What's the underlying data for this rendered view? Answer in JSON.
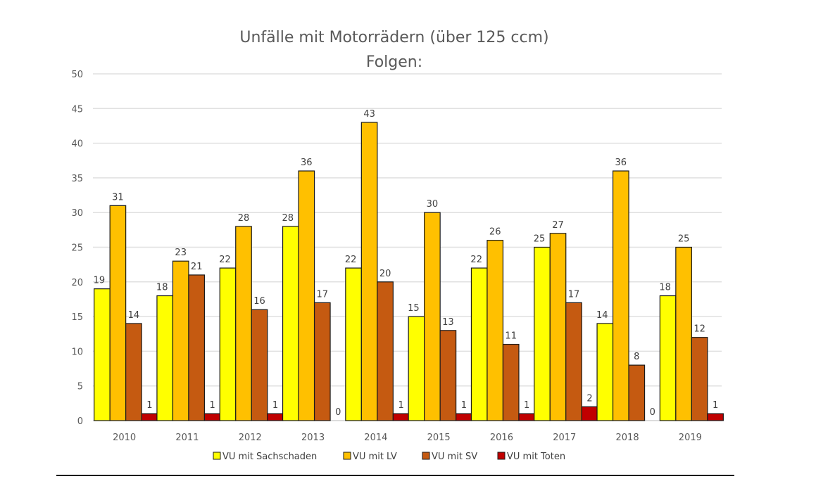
{
  "chart_data": {
    "type": "bar",
    "title": "Unfälle mit Motorrädern (über 125 ccm)",
    "subtitle": "Folgen:",
    "xlabel": "",
    "ylabel": "",
    "ylim": [
      0,
      50
    ],
    "yticks": [
      0,
      5,
      10,
      15,
      20,
      25,
      30,
      35,
      40,
      45,
      50
    ],
    "grid": true,
    "legend_position": "bottom",
    "categories": [
      "2010",
      "2011",
      "2012",
      "2013",
      "2014",
      "2015",
      "2016",
      "2017",
      "2018",
      "2019"
    ],
    "series": [
      {
        "name": "VU mit Sachschaden",
        "color": "#FFFF00",
        "values": [
          19,
          18,
          22,
          28,
          22,
          15,
          22,
          25,
          14,
          18
        ]
      },
      {
        "name": "VU mit LV",
        "color": "#FFC000",
        "values": [
          31,
          23,
          28,
          36,
          43,
          30,
          26,
          27,
          36,
          25
        ]
      },
      {
        "name": "VU mit SV",
        "color": "#C55A11",
        "values": [
          14,
          21,
          16,
          17,
          20,
          13,
          11,
          17,
          8,
          12
        ]
      },
      {
        "name": "VU mit Toten",
        "color": "#C00000",
        "values": [
          1,
          1,
          1,
          0,
          1,
          1,
          1,
          2,
          0,
          1
        ]
      }
    ]
  }
}
